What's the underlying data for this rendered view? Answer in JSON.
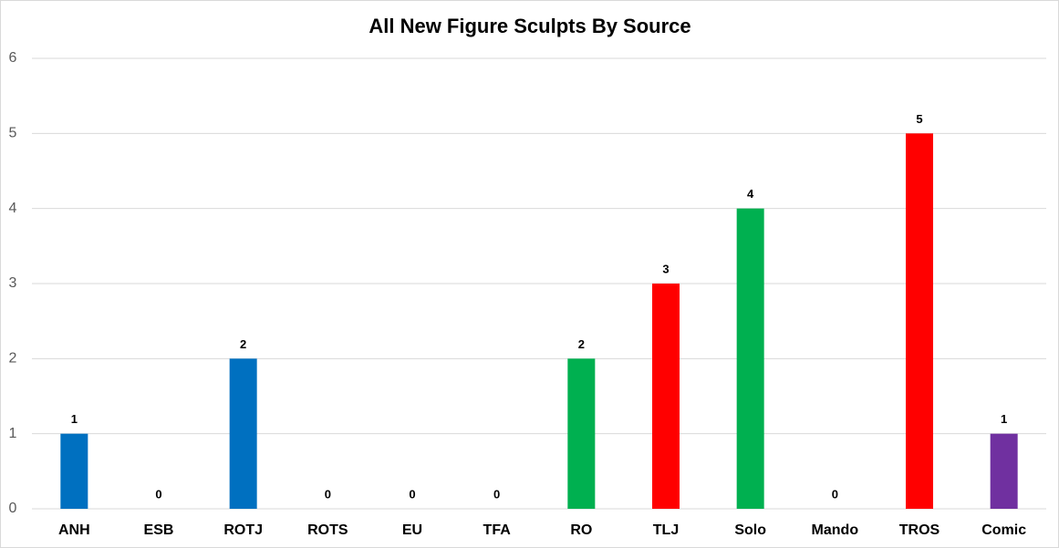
{
  "chart_data": {
    "type": "bar",
    "title": "All New Figure Sculpts By Source",
    "categories": [
      "ANH",
      "ESB",
      "ROTJ",
      "ROTS",
      "EU",
      "TFA",
      "RO",
      "TLJ",
      "Solo",
      "Mando",
      "TROS",
      "Comic"
    ],
    "values": [
      1,
      0,
      2,
      0,
      0,
      0,
      2,
      3,
      4,
      0,
      5,
      1
    ],
    "colors": [
      "#0070c0",
      "#0070c0",
      "#0070c0",
      "#0070c0",
      "#7030a0",
      "#ff0000",
      "#00b050",
      "#ff0000",
      "#00b050",
      "#00b050",
      "#ff0000",
      "#7030a0"
    ],
    "ylim": [
      0,
      6
    ],
    "yticks": [
      0,
      1,
      2,
      3,
      4,
      5,
      6
    ],
    "grid": true
  }
}
